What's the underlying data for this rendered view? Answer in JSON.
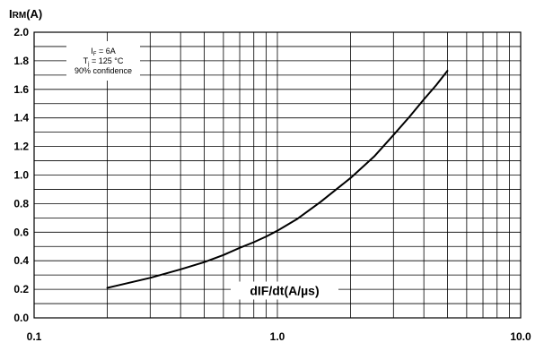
{
  "chart_data": {
    "type": "line",
    "x_scale": "log",
    "xlim": [
      0.1,
      10.0
    ],
    "ylim": [
      0.0,
      2.0
    ],
    "grid": true,
    "ylabel": {
      "main": "I",
      "sub": "RM",
      "unit": "(A)"
    },
    "xlabel": "dIF/dt(A/µs)",
    "xlabel_position": "inside-bottom-center",
    "x_ticks": [
      "0.1",
      "1.0",
      "10.0"
    ],
    "y_ticks": [
      "0.0",
      "0.2",
      "0.4",
      "0.6",
      "0.8",
      "1.0",
      "1.2",
      "1.4",
      "1.6",
      "1.8",
      "2.0"
    ],
    "annotation": {
      "position": "top-left",
      "lines": [
        {
          "main": "I",
          "sub": "F",
          "rest": " = 6A"
        },
        {
          "main": "T",
          "sub": "j",
          "rest": " = 125 °C"
        },
        {
          "main": "90% confidence",
          "sub": "",
          "rest": ""
        }
      ]
    },
    "series": [
      {
        "x": [
          0.2,
          0.3,
          0.4,
          0.5,
          0.6,
          0.7,
          0.8,
          0.9,
          1.0,
          1.2,
          1.5,
          2.0,
          2.5,
          3.0,
          3.5,
          4.0,
          4.5,
          5.0
        ],
        "y": [
          0.21,
          0.28,
          0.34,
          0.39,
          0.44,
          0.49,
          0.53,
          0.57,
          0.61,
          0.69,
          0.81,
          0.98,
          1.13,
          1.28,
          1.41,
          1.53,
          1.63,
          1.73
        ]
      }
    ]
  }
}
